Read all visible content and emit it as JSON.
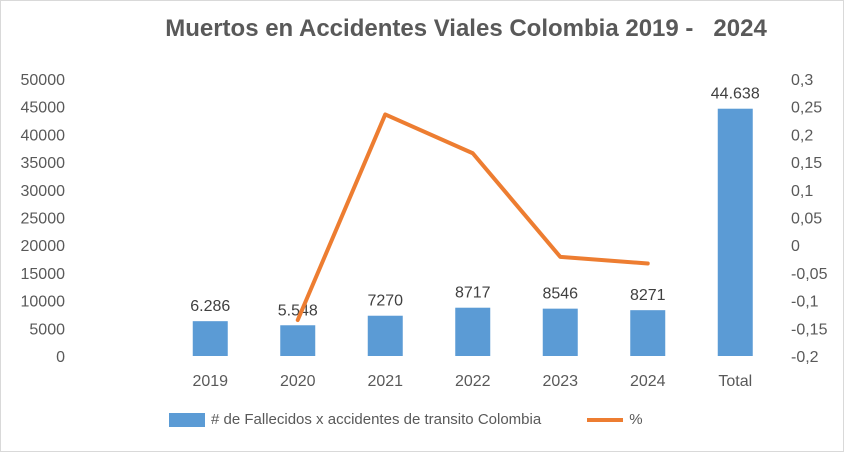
{
  "chart_data": {
    "type": "bar",
    "title": "Muertos en Accidentes Viales Colombia 2019 -   2024",
    "categories": [
      "2019",
      "2020",
      "2021",
      "2022",
      "2023",
      "2024",
      "Total"
    ],
    "series": [
      {
        "name": "# de Fallecidos x accidentes de transito Colombia",
        "type": "bar",
        "axis": "left",
        "values": [
          6286,
          5548,
          7270,
          8717,
          8546,
          8271,
          44638
        ],
        "labels": [
          "6.286",
          "5.548",
          "7270",
          "8717",
          "8546",
          "8271",
          "44.638"
        ],
        "color": "#5b9bd5"
      },
      {
        "name": "%",
        "type": "line",
        "axis": "right",
        "values": [
          null,
          -0.135,
          0.236,
          0.166,
          -0.021,
          -0.033,
          null
        ],
        "color": "#ed7d31"
      }
    ],
    "y_left": {
      "min": 0,
      "max": 50000,
      "ticks": [
        "0",
        "5000",
        "10000",
        "15000",
        "20000",
        "25000",
        "30000",
        "35000",
        "40000",
        "45000",
        "50000"
      ]
    },
    "y_right": {
      "min": -0.2,
      "max": 0.3,
      "ticks": [
        "-0,2",
        "-0,15",
        "-0,1",
        "-0,05",
        "0",
        "0,05",
        "0,1",
        "0,15",
        "0,2",
        "0,25",
        "0,3"
      ]
    },
    "grid": false,
    "legend": "bottom"
  }
}
